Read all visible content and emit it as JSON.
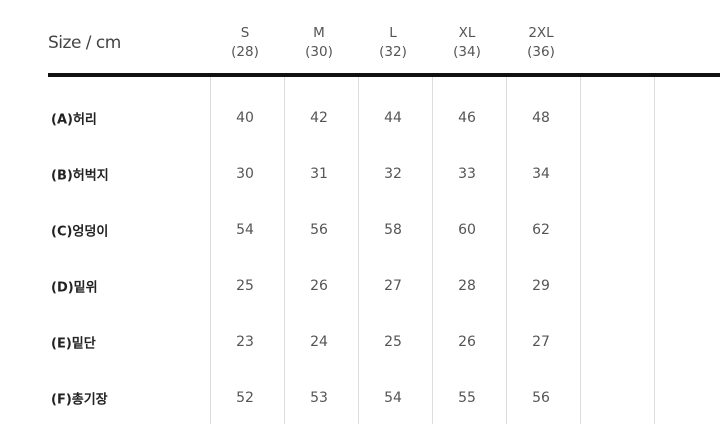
{
  "title": "Size / cm",
  "sizes": [
    {
      "label": "S",
      "num": "(28)"
    },
    {
      "label": "M",
      "num": "(30)"
    },
    {
      "label": "L",
      "num": "(32)"
    },
    {
      "label": "XL",
      "num": "(34)"
    },
    {
      "label": "2XL",
      "num": "(36)"
    }
  ],
  "rows": [
    {
      "label": "(A)허리",
      "values": [
        "40",
        "42",
        "44",
        "46",
        "48"
      ]
    },
    {
      "label": "(B)허벅지",
      "values": [
        "30",
        "31",
        "32",
        "33",
        "34"
      ]
    },
    {
      "label": "(C)엉덩이",
      "values": [
        "54",
        "56",
        "58",
        "60",
        "62"
      ]
    },
    {
      "label": "(D)밑위",
      "values": [
        "25",
        "26",
        "27",
        "28",
        "29"
      ]
    },
    {
      "label": "(E)밑단",
      "values": [
        "23",
        "24",
        "25",
        "26",
        "27"
      ]
    },
    {
      "label": "(F)총기장",
      "values": [
        "52",
        "53",
        "54",
        "55",
        "56"
      ]
    }
  ]
}
